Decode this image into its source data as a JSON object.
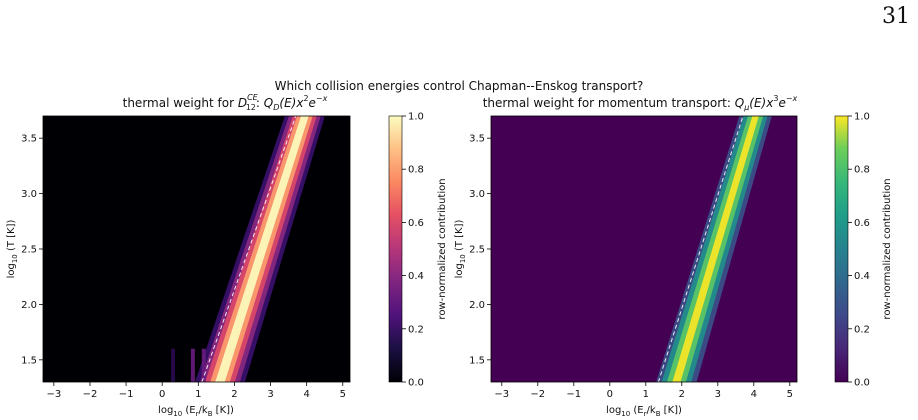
{
  "page_number": "31",
  "figure": {
    "suptitle": "Which collision energies control Chapman--Enskog transport?",
    "colors": {
      "left_colormap": "magma",
      "right_colormap": "viridis",
      "guide_line": "#ffffff"
    }
  },
  "chart_data": [
    {
      "type": "heatmap",
      "title": "thermal weight for D₁₂^CE: Q_D(E) x² e^{-x}",
      "title_parts": {
        "prefix": "thermal weight for ",
        "D": "D",
        "D_sub": "12",
        "D_sup": "CE",
        "Q": "Q",
        "Q_sub": "D",
        "args": "(E)x",
        "exp1": "2",
        "e": "e",
        "exp2": "−x"
      },
      "xlabel": "log₁₀ (E_r/k_B [K])",
      "xlabel_parts": {
        "log": "log",
        "log_sub": "10",
        "open": " (E",
        "E_sub": "r",
        "slash": "/k",
        "k_sub": "B",
        "unit": " [K])"
      },
      "ylabel": "log₁₀ (T [K])",
      "ylabel_parts": {
        "log": "log",
        "log_sub": "10",
        "rest": " (T [K])"
      },
      "xlim": [
        -3.3,
        5.2
      ],
      "ylim": [
        1.3,
        3.7
      ],
      "xticks": [
        -3,
        -2,
        -1,
        0,
        1,
        2,
        3,
        4,
        5
      ],
      "xtick_labels": [
        "−3",
        "−2",
        "−1",
        "0",
        "1",
        "2",
        "3",
        "4",
        "5"
      ],
      "yticks": [
        1.5,
        2.0,
        2.5,
        3.0,
        3.5
      ],
      "ytick_labels": [
        "1.5",
        "2.0",
        "2.5",
        "3.0",
        "3.5"
      ],
      "colormap": "magma",
      "colorbar": {
        "label": "row-normalized contribution",
        "ticks": [
          0,
          0.2,
          0.4,
          0.6,
          0.8,
          1.0
        ],
        "tick_labels": [
          "0.0",
          "0.2",
          "0.4",
          "0.6",
          "0.8",
          "1.0"
        ],
        "range": [
          0,
          1
        ]
      },
      "band": {
        "peak_at_low_T": [
          1.3,
          1.6
        ],
        "peak_at_high_T": [
          3.7,
          3.95
        ],
        "width_log10": 0.35,
        "low_energy_striations_x": [
          0.3,
          0.85,
          1.15
        ]
      },
      "guide_line": {
        "style": "dashed",
        "x_at_ymin": 1.1,
        "x_at_ymax": 3.7
      }
    },
    {
      "type": "heatmap",
      "title": "thermal weight for momentum transport: Q_μ(E) x³ e^{-x}",
      "title_parts": {
        "prefix": "thermal weight for momentum transport: ",
        "Q": "Q",
        "Q_sub": "μ",
        "args": "(E)x",
        "exp1": "3",
        "e": "e",
        "exp2": "−x"
      },
      "xlabel": "log₁₀ (E_r/k_B [K])",
      "xlabel_parts": {
        "log": "log",
        "log_sub": "10",
        "open": " (E",
        "E_sub": "r",
        "slash": "/k",
        "k_sub": "B",
        "unit": " [K])"
      },
      "ylabel": "log₁₀ (T [K])",
      "ylabel_parts": {
        "log": "log",
        "log_sub": "10",
        "rest": " (T [K])"
      },
      "xlim": [
        -3.3,
        5.2
      ],
      "ylim": [
        1.3,
        3.7
      ],
      "xticks": [
        -3,
        -2,
        -1,
        0,
        1,
        2,
        3,
        4,
        5
      ],
      "xtick_labels": [
        "−3",
        "−2",
        "−1",
        "0",
        "1",
        "2",
        "3",
        "4",
        "5"
      ],
      "yticks": [
        1.5,
        2.0,
        2.5,
        3.0,
        3.5
      ],
      "ytick_labels": [
        "1.5",
        "2.0",
        "2.5",
        "3.0",
        "3.5"
      ],
      "colormap": "viridis",
      "colorbar": {
        "label": "row-normalized contribution",
        "ticks": [
          0,
          0.2,
          0.4,
          0.6,
          0.8,
          1.0
        ],
        "tick_labels": [
          "0.0",
          "0.2",
          "0.4",
          "0.6",
          "0.8",
          "1.0"
        ],
        "range": [
          0,
          1
        ]
      },
      "band": {
        "peak_at_low_T": [
          1.3,
          1.85
        ],
        "peak_at_high_T": [
          3.7,
          4.05
        ],
        "width_log10": 0.3
      },
      "guide_line": {
        "style": "dashed",
        "x_at_ymin": 1.35,
        "x_at_ymax": 3.7
      }
    }
  ]
}
